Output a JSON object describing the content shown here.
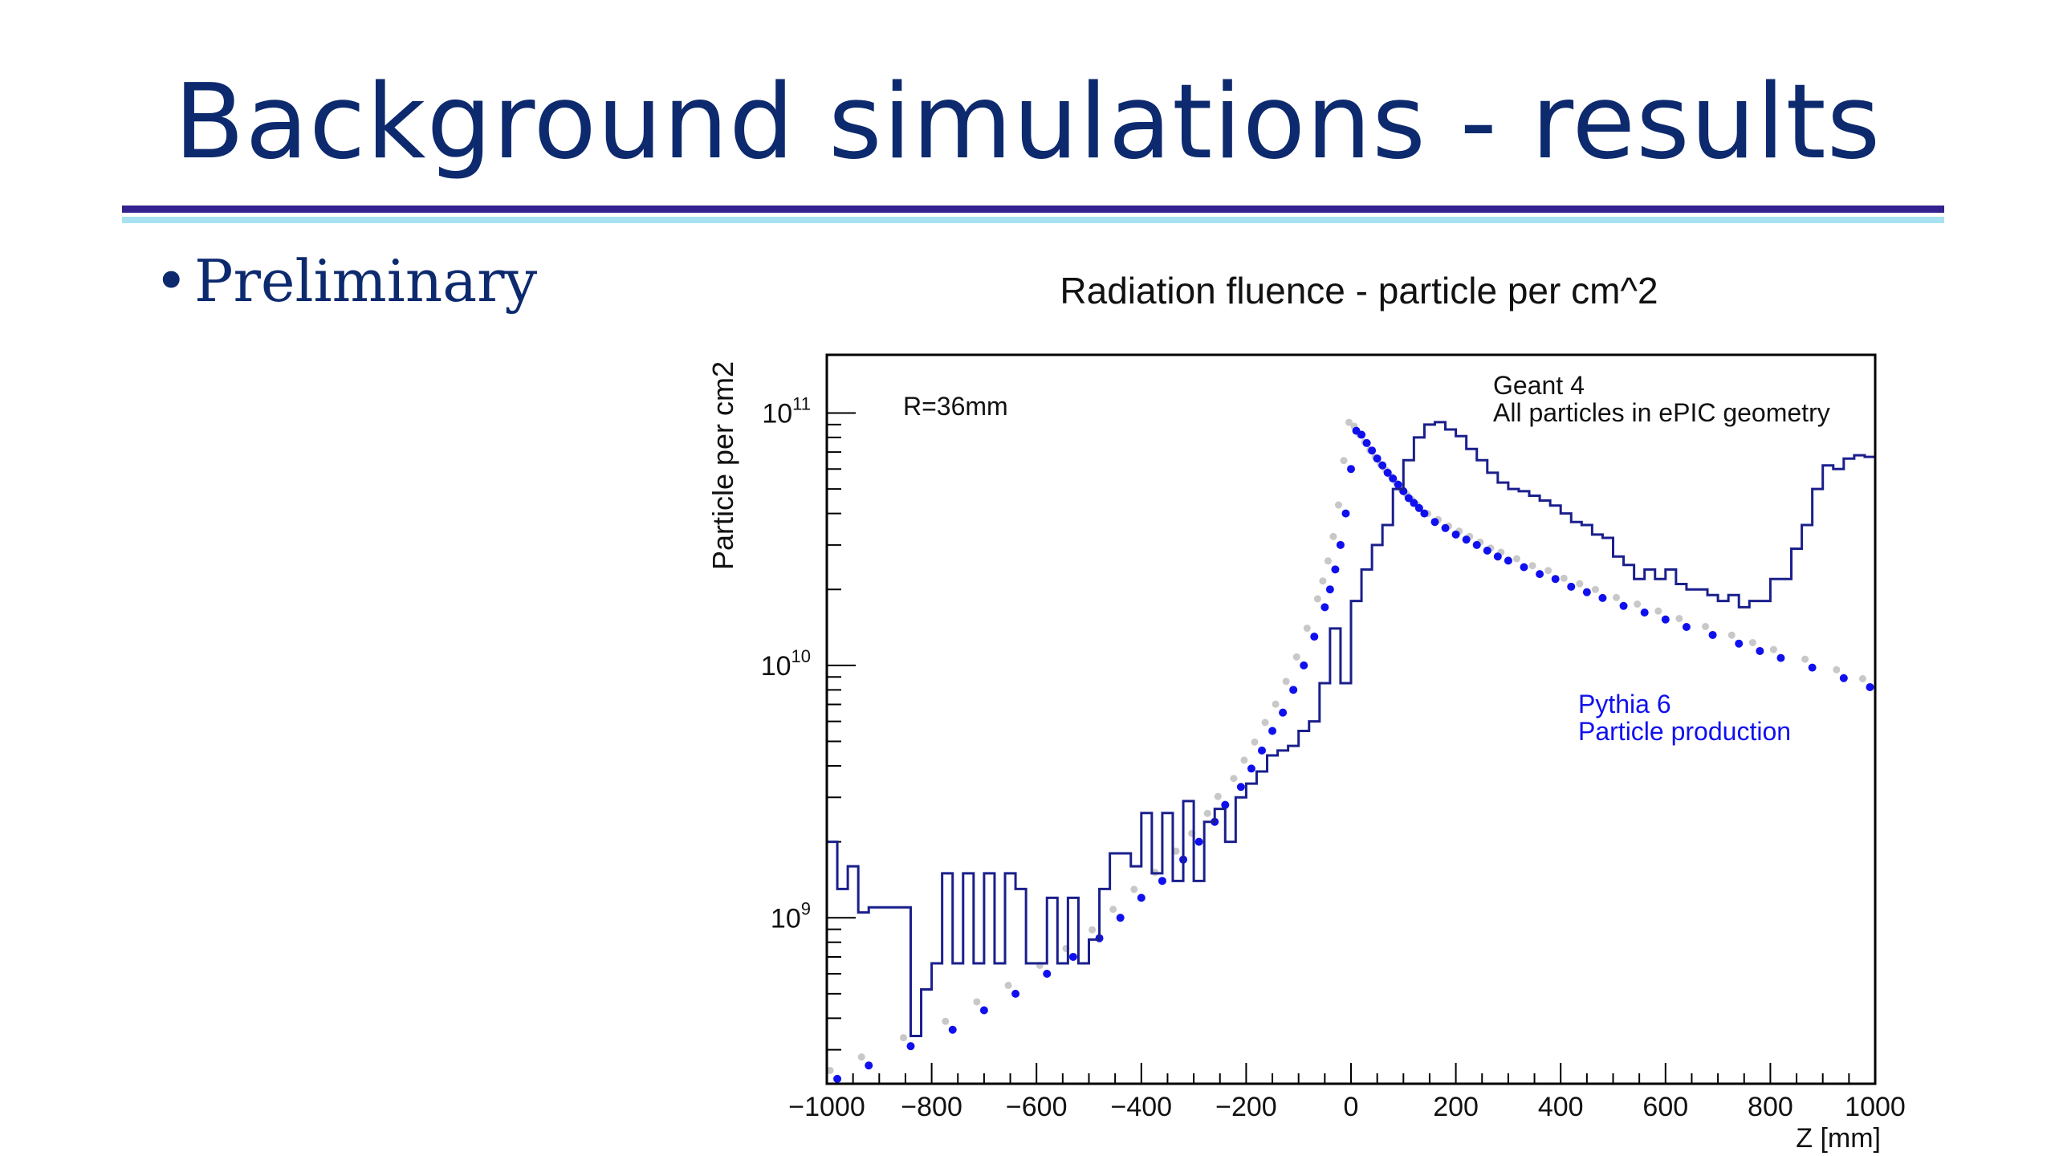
{
  "slide": {
    "title": "Background simulations - results",
    "bullet": "Preliminary",
    "colors": {
      "title": "#0d2a6e",
      "rule_dark": "#33228f",
      "rule_light": "#a8e2f2"
    }
  },
  "chart_data": {
    "type": "line",
    "title": "Radiation fluence - particle per cm^2",
    "xlabel": "Z [mm]",
    "ylabel": "Particle per cm2",
    "xlim": [
      -1000,
      1000
    ],
    "ylim": [
      220000000.0,
      170000000000.0
    ],
    "yscale": "log",
    "x_ticks": [
      -1000,
      -800,
      -600,
      -400,
      -200,
      0,
      200,
      400,
      600,
      800,
      1000
    ],
    "x_tick_labels": [
      "−1000",
      "−800",
      "−600",
      "−400",
      "−200",
      "0",
      "200",
      "400",
      "600",
      "800",
      "1000"
    ],
    "y_ticks": [
      {
        "value": 1000000000.0,
        "base": "10",
        "exp": "9"
      },
      {
        "value": 10000000000.0,
        "base": "10",
        "exp": "10"
      },
      {
        "value": 100000000000.0,
        "base": "10",
        "exp": "11"
      }
    ],
    "grid": false,
    "annotations": {
      "radius": "R=36mm",
      "geant": [
        "Geant 4",
        "All particles in ePIC geometry"
      ],
      "pythia": [
        "Pythia 6",
        "Particle production"
      ]
    },
    "colors": {
      "geant": "#1a1f8c",
      "pythia": "#1010ee",
      "gray": "#c8c8c8"
    },
    "series": [
      {
        "name": "Geant 4",
        "style": "histogram",
        "bin_width": 20,
        "edges_start": -1000,
        "values": [
          2000000000.0,
          1300000000.0,
          1600000000.0,
          1050000000.0,
          1100000000.0,
          1100000000.0,
          1100000000.0,
          1100000000.0,
          340000000.0,
          520000000.0,
          660000000.0,
          1500000000.0,
          660000000.0,
          1500000000.0,
          660000000.0,
          1500000000.0,
          660000000.0,
          1500000000.0,
          1300000000.0,
          660000000.0,
          660000000.0,
          1200000000.0,
          660000000.0,
          1200000000.0,
          660000000.0,
          820000000.0,
          1300000000.0,
          1800000000.0,
          1800000000.0,
          1600000000.0,
          2600000000.0,
          1500000000.0,
          2600000000.0,
          1400000000.0,
          2900000000.0,
          1400000000.0,
          2400000000.0,
          2700000000.0,
          2000000000.0,
          3000000000.0,
          3400000000.0,
          3800000000.0,
          4400000000.0,
          4600000000.0,
          4800000000.0,
          5500000000.0,
          6000000000.0,
          8500000000.0,
          14000000000.0,
          8500000000.0,
          18000000000.0,
          24000000000.0,
          30000000000.0,
          36000000000.0,
          50000000000.0,
          65000000000.0,
          80000000000.0,
          90000000000.0,
          92000000000.0,
          86000000000.0,
          81000000000.0,
          72000000000.0,
          65000000000.0,
          58000000000.0,
          53000000000.0,
          50000000000.0,
          49000000000.0,
          47000000000.0,
          45000000000.0,
          43000000000.0,
          40000000000.0,
          37000000000.0,
          36000000000.0,
          33000000000.0,
          32000000000.0,
          27000000000.0,
          25000000000.0,
          22000000000.0,
          24000000000.0,
          22000000000.0,
          24000000000.0,
          21000000000.0,
          20000000000.0,
          20000000000.0,
          19000000000.0,
          18000000000.0,
          19000000000.0,
          17000000000.0,
          18000000000.0,
          18000000000.0,
          22000000000.0,
          22000000000.0,
          29000000000.0,
          36000000000.0,
          50000000000.0,
          62000000000.0,
          60000000000.0,
          66000000000.0,
          68000000000.0,
          67000000000.0
        ]
      },
      {
        "name": "Pythia 6",
        "style": "points",
        "x": [
          -980,
          -920,
          -840,
          -760,
          -700,
          -640,
          -580,
          -530,
          -480,
          -440,
          -400,
          -360,
          -320,
          -290,
          -260,
          -240,
          -210,
          -190,
          -170,
          -150,
          -130,
          -110,
          -90,
          -70,
          -50,
          -40,
          -30,
          -20,
          -10,
          0,
          10,
          20,
          30,
          40,
          50,
          60,
          70,
          80,
          90,
          100,
          110,
          120,
          130,
          140,
          160,
          180,
          200,
          220,
          240,
          260,
          280,
          300,
          330,
          360,
          390,
          420,
          450,
          480,
          520,
          560,
          600,
          640,
          690,
          740,
          780,
          820,
          880,
          940,
          990
        ],
        "y": [
          230000000.0,
          260000000.0,
          310000000.0,
          360000000.0,
          430000000.0,
          500000000.0,
          600000000.0,
          700000000.0,
          830000000.0,
          1000000000.0,
          1200000000.0,
          1400000000.0,
          1700000000.0,
          2000000000.0,
          2400000000.0,
          2800000000.0,
          3300000000.0,
          3900000000.0,
          4600000000.0,
          5500000000.0,
          6500000000.0,
          8000000000.0,
          10000000000.0,
          13000000000.0,
          17000000000.0,
          20000000000.0,
          24000000000.0,
          30000000000.0,
          40000000000.0,
          60000000000.0,
          85000000000.0,
          82000000000.0,
          76000000000.0,
          71000000000.0,
          66000000000.0,
          62000000000.0,
          58000000000.0,
          55000000000.0,
          52000000000.0,
          49000000000.0,
          46000000000.0,
          44000000000.0,
          42000000000.0,
          40000000000.0,
          37000000000.0,
          35000000000.0,
          33000000000.0,
          31500000000.0,
          30000000000.0,
          28500000000.0,
          27000000000.0,
          26000000000.0,
          24500000000.0,
          23000000000.0,
          22000000000.0,
          20500000000.0,
          19500000000.0,
          18500000000.0,
          17200000000.0,
          16200000000.0,
          15200000000.0,
          14200000000.0,
          13200000000.0,
          12200000000.0,
          11400000000.0,
          10700000000.0,
          9800000000.0,
          8900000000.0,
          8200000000.0
        ]
      }
    ]
  }
}
